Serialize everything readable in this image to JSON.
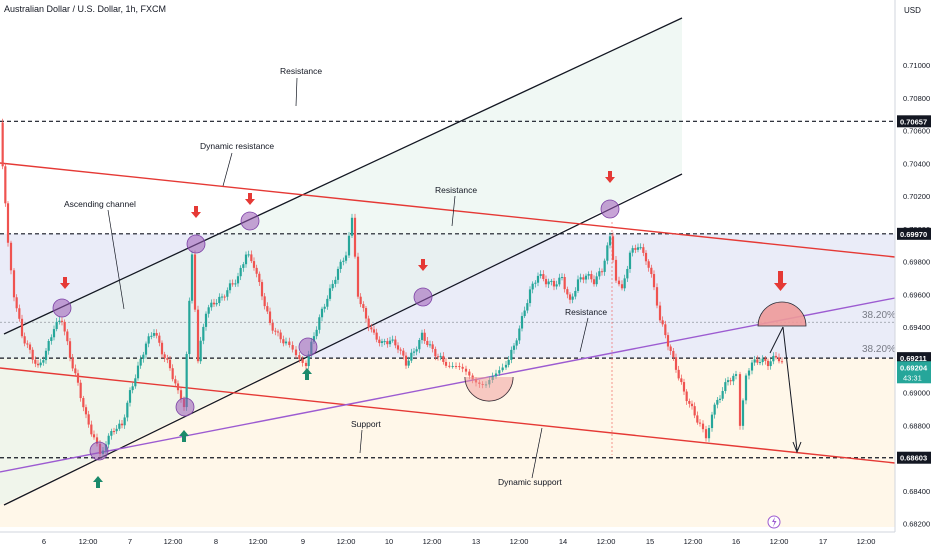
{
  "header": {
    "symbol": "Australian Dollar / U.S. Dollar, 1h, FXCM",
    "currency": "USD"
  },
  "colors": {
    "up": "#26a69a",
    "down": "#ef5350",
    "channel": "#131722",
    "support_resistance": "#e53935",
    "dynamic": "#9c5bd1",
    "circle_fill": "#9b59b6",
    "arrow_up": "#1b8a6b",
    "arrow_down": "#e53935",
    "last_price": "#26a69a"
  },
  "chart_data": {
    "type": "candlestick",
    "x_ticks": [
      "6",
      "12:00",
      "7",
      "12:00",
      "8",
      "12:00",
      "9",
      "12:00",
      "10",
      "12:00",
      "13",
      "12:00",
      "14",
      "12:00",
      "15",
      "12:00",
      "16",
      "12:00",
      "17",
      "12:00"
    ],
    "y_ticks": [
      0.71,
      0.708,
      0.706,
      0.704,
      0.702,
      0.7,
      0.698,
      0.696,
      0.694,
      0.692,
      0.69,
      0.688,
      0.686,
      0.684,
      0.682
    ],
    "y_tick_labels": [
      "0.71000",
      "0.70800",
      "0.70600",
      "0.70400",
      "0.70200",
      "0.70000",
      "0.69800",
      "0.69600",
      "0.69400",
      "0.69200",
      "0.69000",
      "0.68800",
      "0.68600",
      "0.68400",
      "0.68200"
    ],
    "ylim": [
      0.6818,
      0.713
    ],
    "levels": [
      {
        "value": 0.70657,
        "label": "0.70657"
      },
      {
        "value": 0.6997,
        "label": "0.69970"
      },
      {
        "value": 0.69211,
        "label": "0.69211"
      },
      {
        "value": 0.68603,
        "label": "0.68603"
      }
    ],
    "last_price": {
      "value": 0.69204,
      "label": "0.69204",
      "countdown": "43:31"
    },
    "fib_labels": [
      "38.20%",
      "38.20%"
    ],
    "annotations": {
      "resistance_top": "Resistance",
      "dynamic_resistance": "Dynamic resistance",
      "ascending_channel": "Ascending channel",
      "resistance_mid": "Resistance",
      "resistance_low": "Resistance",
      "support": "Support",
      "dynamic_support": "Dynamic support"
    },
    "candle_path": [
      [
        0,
        0.7065
      ],
      [
        8,
        0.699
      ],
      [
        14,
        0.696
      ],
      [
        22,
        0.6935
      ],
      [
        30,
        0.6925
      ],
      [
        38,
        0.6915
      ],
      [
        46,
        0.6925
      ],
      [
        54,
        0.694
      ],
      [
        62,
        0.6945
      ],
      [
        70,
        0.6922
      ],
      [
        78,
        0.6905
      ],
      [
        86,
        0.6885
      ],
      [
        94,
        0.6872
      ],
      [
        100,
        0.6862
      ],
      [
        106,
        0.687
      ],
      [
        114,
        0.6878
      ],
      [
        122,
        0.688
      ],
      [
        130,
        0.69
      ],
      [
        138,
        0.6915
      ],
      [
        146,
        0.693
      ],
      [
        154,
        0.6938
      ],
      [
        162,
        0.6925
      ],
      [
        170,
        0.6915
      ],
      [
        178,
        0.69
      ],
      [
        184,
        0.6893
      ],
      [
        192,
        0.6985
      ],
      [
        198,
        0.692
      ],
      [
        206,
        0.695
      ],
      [
        214,
        0.6955
      ],
      [
        222,
        0.6958
      ],
      [
        230,
        0.6965
      ],
      [
        238,
        0.697
      ],
      [
        246,
        0.6985
      ],
      [
        254,
        0.6978
      ],
      [
        262,
        0.696
      ],
      [
        270,
        0.6942
      ],
      [
        278,
        0.6935
      ],
      [
        286,
        0.693
      ],
      [
        296,
        0.6922
      ],
      [
        306,
        0.6918
      ],
      [
        314,
        0.6935
      ],
      [
        322,
        0.695
      ],
      [
        330,
        0.6962
      ],
      [
        338,
        0.6975
      ],
      [
        346,
        0.6985
      ],
      [
        352,
        0.7005
      ],
      [
        358,
        0.696
      ],
      [
        366,
        0.6945
      ],
      [
        374,
        0.6935
      ],
      [
        382,
        0.693
      ],
      [
        390,
        0.6932
      ],
      [
        398,
        0.6928
      ],
      [
        406,
        0.6918
      ],
      [
        414,
        0.6925
      ],
      [
        422,
        0.6935
      ],
      [
        430,
        0.6928
      ],
      [
        438,
        0.6922
      ],
      [
        446,
        0.6918
      ],
      [
        456,
        0.6915
      ],
      [
        466,
        0.6912
      ],
      [
        476,
        0.6908
      ],
      [
        486,
        0.6905
      ],
      [
        496,
        0.691
      ],
      [
        506,
        0.6918
      ],
      [
        514,
        0.6928
      ],
      [
        522,
        0.6945
      ],
      [
        530,
        0.6962
      ],
      [
        538,
        0.6972
      ],
      [
        546,
        0.6968
      ],
      [
        554,
        0.6966
      ],
      [
        562,
        0.697
      ],
      [
        570,
        0.6955
      ],
      [
        578,
        0.6968
      ],
      [
        586,
        0.6972
      ],
      [
        594,
        0.6968
      ],
      [
        602,
        0.6975
      ],
      [
        610,
        0.6995
      ],
      [
        616,
        0.697
      ],
      [
        622,
        0.6962
      ],
      [
        630,
        0.6985
      ],
      [
        638,
        0.699
      ],
      [
        646,
        0.6982
      ],
      [
        654,
        0.6965
      ],
      [
        660,
        0.6945
      ],
      [
        668,
        0.693
      ],
      [
        676,
        0.6915
      ],
      [
        684,
        0.69
      ],
      [
        692,
        0.689
      ],
      [
        700,
        0.688
      ],
      [
        706,
        0.6872
      ],
      [
        712,
        0.6888
      ],
      [
        720,
        0.6898
      ],
      [
        728,
        0.6908
      ],
      [
        736,
        0.691
      ],
      [
        740,
        0.6878
      ],
      [
        746,
        0.6912
      ],
      [
        752,
        0.6918
      ],
      [
        760,
        0.692
      ],
      [
        768,
        0.6918
      ],
      [
        776,
        0.6922
      ],
      [
        782,
        0.692
      ]
    ]
  }
}
